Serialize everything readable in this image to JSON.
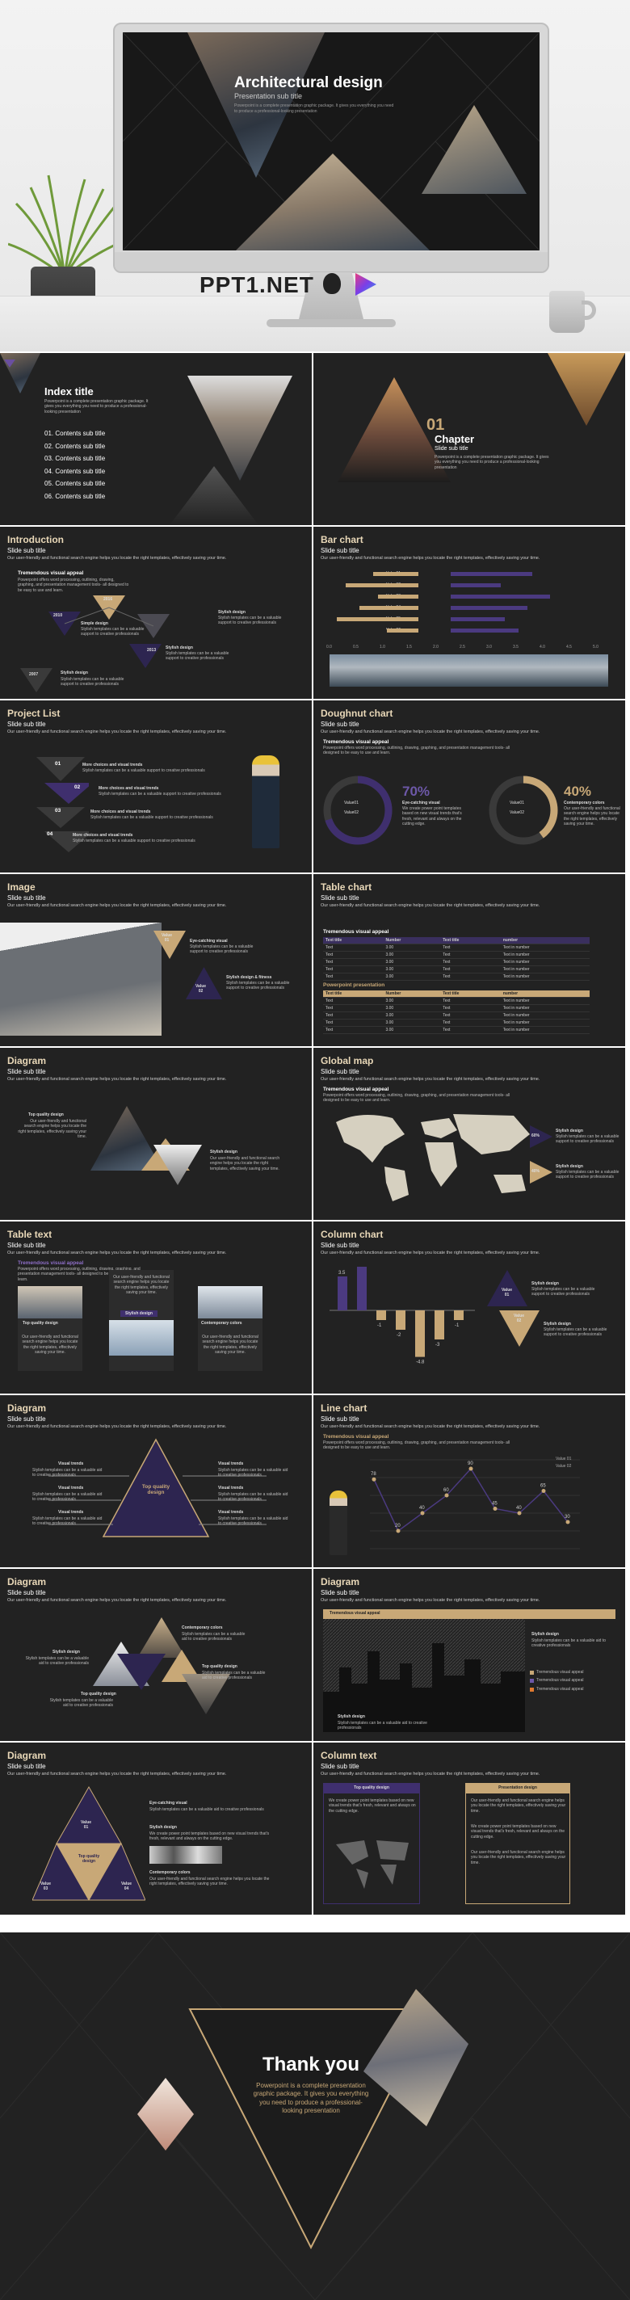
{
  "hero": {
    "brand": "PPT1.NET",
    "title": "Architectural design",
    "subtitle": "Presentation sub title",
    "desc": "Powerpoint is a complete presentation graphic package. It gives you everything you need to produce a professional-looking presentation"
  },
  "index": {
    "title": "Index title",
    "desc": "Powerpoint is a complete presentation graphic package. It gives you everything you need to produce a professional-looking presentation",
    "items": [
      "01. Contents sub title",
      "02. Contents sub title",
      "03. Contents sub title",
      "04. Contents sub title",
      "05. Contents sub title",
      "06. Contents sub title"
    ]
  },
  "chapter": {
    "num": "01",
    "title": "Chapter",
    "sub": "Slide sub title",
    "desc": "Powerpoint is a complete presentation graphic package. It gives you everything you need to produce a professional-looking presentation"
  },
  "common": {
    "sub": "Slide sub title",
    "desc": "Our user-friendly and functional search engine helps you locate the right templates, effectively saving your time.",
    "tva": "Tremendous visual appeal",
    "tva_desc": "Powerpoint offers word processing, outlining, drawing, graphing, and presentation management tools- all designed to be easy to use and learn."
  },
  "intro": {
    "title": "Introduction",
    "years": [
      "2010",
      "2016",
      "2013",
      "2007"
    ],
    "items": [
      {
        "t": "Simple design",
        "d": "Stylish templates can be a valuable support to creative professionals"
      },
      {
        "t": "Stylish design",
        "d": "Stylish templates can be a valuable support to creative professionals"
      },
      {
        "t": "Stylish design",
        "d": "Stylish templates can be a valuable support to creative professionals"
      },
      {
        "t": "Stylish design",
        "d": "Stylish templates can be a valuable support to creative professionals"
      }
    ]
  },
  "bar": {
    "title": "Bar chart",
    "rows": [
      "Value01",
      "Value02",
      "Value03",
      "Value04",
      "Value05",
      "Value06"
    ],
    "axis": [
      "0.0",
      "0.5",
      "1.0",
      "1.5",
      "2.0",
      "2.5",
      "3.0",
      "3.5",
      "4.0",
      "4.5",
      "5.0"
    ]
  },
  "projects": {
    "title": "Project List",
    "items": [
      {
        "n": "01",
        "t": "More choices and visual trends",
        "d": "Stylish templates can be a valuable support to creative professionals"
      },
      {
        "n": "02",
        "t": "More choices and visual trends",
        "d": "Stylish templates can be a valuable support to creative professionals"
      },
      {
        "n": "03",
        "t": "More choices and visual trends",
        "d": "Stylish templates can be a valuable support to creative professionals"
      },
      {
        "n": "04",
        "t": "More choices and visual trends",
        "d": "Stylish templates can be a valuable support to creative professionals"
      }
    ]
  },
  "donut": {
    "title": "Doughnut chart",
    "p1": "70%",
    "p1_title": "Eye-catching visual",
    "p1_desc": "We create power point templates based on new visual trends that's fresh, relevant and always on the cutting edge.",
    "p2": "40%",
    "p2_title": "Contemporary colors",
    "p2_desc": "Our user-friendly and functional search engine helps you locate the right templates, effectively saving your time.",
    "legend": [
      "Value01",
      "Value02"
    ]
  },
  "image": {
    "title": "Image",
    "v1": "Value\n01",
    "v2": "Value\n02",
    "t1": "Eye-catching visual",
    "d1": "Stylish templates can be a valuable support to creative professionals",
    "t2": "Stylish design & fitness",
    "d2": "Stylish templates can be a valuable support to creative professionals"
  },
  "tablechart": {
    "title": "Table chart",
    "t1": "Tremendous visual appeal",
    "t2": "Powerpoint presentation",
    "headers": [
      "Text title",
      "Number",
      "Text title",
      "number"
    ],
    "rows": [
      [
        "Text",
        "3.00",
        "Text",
        "Text in number"
      ],
      [
        "Text",
        "3.00",
        "Text",
        "Text in number"
      ],
      [
        "Text",
        "3.00",
        "Text",
        "Text in number"
      ],
      [
        "Text",
        "3.00",
        "Text",
        "Text in number"
      ],
      [
        "Text",
        "3.00",
        "Text",
        "Text in number"
      ]
    ],
    "rows2": [
      [
        "Text",
        "3.00",
        "Text",
        "Text in number"
      ],
      [
        "Text",
        "3.00",
        "Text",
        "Text in number"
      ],
      [
        "Text",
        "3.00",
        "Text",
        "Text in number"
      ],
      [
        "Text",
        "3.00",
        "Text",
        "Text in number"
      ],
      [
        "Text",
        "3.00",
        "Text",
        "Text in number"
      ]
    ]
  },
  "diagram1": {
    "title": "Diagram",
    "t1": "Top quality design",
    "d1": "Our user-friendly and functional search engine helps you locate the right templates, effectively saving your time.",
    "t2": "Stylish design",
    "d2": "Our user-friendly and functional search engine helps you locate the right templates, effectively saving your time."
  },
  "map": {
    "title": "Global map",
    "p1": "60%",
    "p2": "40%",
    "t1": "Stylish design",
    "d1": "Stylish templates can be a valuable support to creative professionals",
    "t2": "Stylish design",
    "d2": "Stylish templates can be a valuable support to creative professionals"
  },
  "tabletext": {
    "title": "Table text",
    "cards": [
      {
        "t": "Top quality design",
        "d": "Our user-friendly and functional search engine helps you locate the right templates, effectively saving your time."
      },
      {
        "t": "Stylish design",
        "d": "Our user-friendly and functional search engine helps you locate the right templates, effectively saving your time."
      },
      {
        "t": "Contemporary colors",
        "d": "Our user-friendly and functional search engine helps you locate the right templates, effectively saving your time."
      }
    ]
  },
  "column": {
    "title": "Column chart",
    "v1": "Value\n01",
    "v2": "Value\n02",
    "t1": "Stylish design",
    "d1": "Stylish templates can be a valuable support to creative professionals",
    "t2": "Stylish design",
    "d2": "Stylish templates can be a valuable support to creative professionals",
    "labels": [
      "3.5",
      "4.5",
      "-1",
      "-2",
      "-4.8",
      "-3",
      "-1"
    ]
  },
  "diagram2": {
    "title": "Diagram",
    "center": "Top quality design",
    "left": [
      "Visual trends",
      "Visual trends",
      "Visual trends"
    ],
    "right": [
      "Visual trends",
      "Visual trends",
      "Visual trends"
    ],
    "d": "Stylish templates can be a valuable aid to creative professionals"
  },
  "line": {
    "title": "Line chart",
    "values": [
      "78",
      "20",
      "40",
      "60",
      "90",
      "45",
      "40",
      "65",
      "30"
    ],
    "legend": [
      "Value 01",
      "Value 02"
    ]
  },
  "diagram3": {
    "title": "Diagram",
    "t1": "Contemporary colors",
    "t2": "Stylish design",
    "t3": "Top quality design",
    "t4": "Top quality design",
    "d": "Stylish templates can be a valuable aid to creative professionals"
  },
  "diagram4": {
    "title": "Diagram",
    "tva": "Tremendous visual appeal",
    "t1": "Stylish design",
    "t2": "Stylish design",
    "d": "Stylish templates can be a valuable aid to creative professionals",
    "legend": [
      "Tremendous visual appeal",
      "Tremendous visual appeal",
      "Tremendous visual appeal"
    ]
  },
  "diagram5": {
    "title": "Diagram",
    "v": [
      "Value\n01",
      "Value\n02",
      "Value\n03",
      "Value\n04"
    ],
    "center": "Top quality design",
    "t1": "Eye-catching visual",
    "d1": "Stylish templates can be a valuable aid to creative professionals",
    "t2": "Stylish design",
    "d2": "We create power point templates based on new visual trends that's fresh, relevant and always on the cutting edge.",
    "t3": "Contemporary colors",
    "d3": "Our user-friendly and functional search engine helps you locate the right templates, effectively saving your time."
  },
  "coltext": {
    "title": "Column text",
    "t1": "Top quality design",
    "d1": "We create power point templates based on new visual trends that's fresh, relevant and always on the cutting edge.",
    "t2": "Presentation design",
    "d2": "Our user-friendly and functional search engine helps you locate the right templates, effectively saving your time."
  },
  "thanks": {
    "title": "Thank you",
    "desc": "Powerpoint is a complete presentation graphic package. It gives you everything you need to produce a professional-looking presentation"
  }
}
